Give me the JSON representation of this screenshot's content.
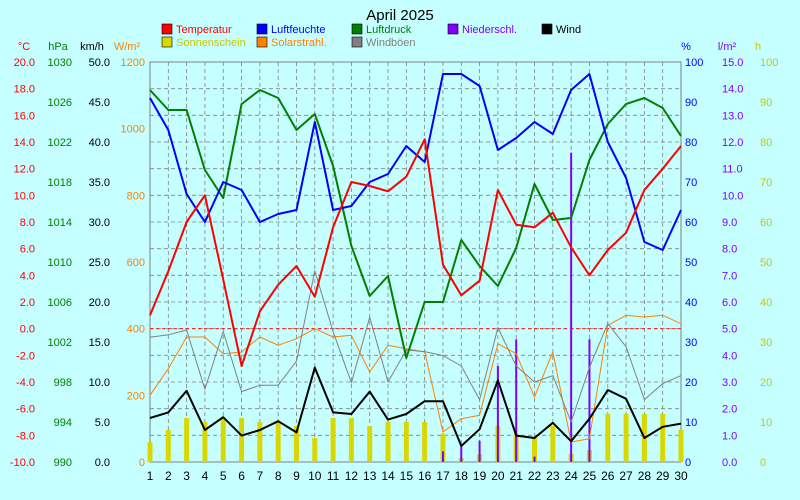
{
  "chart_data": {
    "type": "line",
    "title": "April 2025",
    "x": [
      1,
      2,
      3,
      4,
      5,
      6,
      7,
      8,
      9,
      10,
      11,
      12,
      13,
      14,
      15,
      16,
      17,
      18,
      19,
      20,
      21,
      22,
      23,
      24,
      25,
      26,
      27,
      28,
      29,
      30
    ],
    "axes": {
      "temperature": {
        "unit": "°C",
        "ticks": [
          "20.0",
          "18.0",
          "16.0",
          "14.0",
          "12.0",
          "10.0",
          "8.0",
          "6.0",
          "4.0",
          "2.0",
          "0.0",
          "-2.0",
          "-4.0",
          "-6.0",
          "-8.0",
          "-10.0"
        ],
        "range": [
          -10,
          20
        ],
        "color": "#ff0000"
      },
      "pressure": {
        "unit": "hPa",
        "ticks": [
          "1030",
          "1026",
          "1022",
          "1018",
          "1014",
          "1010",
          "1006",
          "1002",
          "998",
          "994",
          "990"
        ],
        "range": [
          990,
          1030
        ],
        "color": "#008000"
      },
      "wind": {
        "unit": "km/h",
        "ticks": [
          "50.0",
          "45.0",
          "40.0",
          "35.0",
          "30.0",
          "25.0",
          "20.0",
          "15.0",
          "10.0",
          "5.0",
          "0.0"
        ],
        "range": [
          0,
          50
        ],
        "color": "#000000"
      },
      "radiation": {
        "unit": "W/m²",
        "ticks": [
          "1200",
          "1000",
          "800",
          "600",
          "400",
          "200",
          "0"
        ],
        "range": [
          0,
          1200
        ],
        "color": "#ff8000"
      },
      "humidity": {
        "unit": "%",
        "ticks": [
          "100",
          "90",
          "80",
          "70",
          "60",
          "50",
          "40",
          "30",
          "20",
          "10",
          "0"
        ],
        "range": [
          0,
          100
        ],
        "color": "#0000ff"
      },
      "precipitation": {
        "unit": "l/m²",
        "ticks": [
          "15.0",
          "14.0",
          "13.0",
          "12.0",
          "11.0",
          "10.0",
          "9.0",
          "8.0",
          "7.0",
          "6.0",
          "5.0",
          "4.0",
          "3.0",
          "2.0",
          "1.0",
          "0.0"
        ],
        "range": [
          0,
          15
        ],
        "color": "#8000ff"
      },
      "sunshine": {
        "unit": "h",
        "ticks": [
          "100",
          "90",
          "80",
          "70",
          "60",
          "50",
          "40",
          "30",
          "20",
          "10",
          "0"
        ],
        "range": [
          0,
          100
        ],
        "color": "#c8c800"
      }
    },
    "legend": [
      {
        "key": "temperature",
        "label": "Temperatur",
        "color": "#ff0000"
      },
      {
        "key": "humidity",
        "label": "Luftfeuchte",
        "color": "#0000ff"
      },
      {
        "key": "pressure",
        "label": "Luftdruck",
        "color": "#008000"
      },
      {
        "key": "precipitation",
        "label": "Niederschl.",
        "color": "#8000ff"
      },
      {
        "key": "wind",
        "label": "Wind",
        "color": "#000000"
      },
      {
        "key": "sunshine",
        "label": "Sonnenschein",
        "color": "#d8d800"
      },
      {
        "key": "radiation",
        "label": "Solarstrahl.",
        "color": "#ff8000"
      },
      {
        "key": "gusts",
        "label": "Windböen",
        "color": "#808080"
      }
    ],
    "series": {
      "temperature": [
        1.0,
        4.3,
        8.0,
        10.0,
        3.7,
        -2.8,
        1.3,
        3.3,
        4.7,
        2.4,
        7.6,
        11.0,
        10.7,
        10.3,
        11.4,
        14.2,
        4.8,
        2.5,
        3.6,
        10.4,
        7.8,
        7.6,
        8.7,
        6.1,
        4.0,
        5.9,
        7.2,
        10.4,
        12.0,
        13.7
      ],
      "humidity": [
        91,
        83,
        67,
        60,
        70,
        68,
        60,
        62,
        63,
        85,
        63,
        64,
        70,
        72,
        79,
        75,
        97,
        97,
        94,
        78,
        81,
        85,
        82,
        93,
        97,
        80,
        71,
        55,
        53,
        63
      ],
      "pressure": [
        1027.2,
        1025.2,
        1025.2,
        1019.2,
        1016.4,
        1025.8,
        1027.2,
        1026.4,
        1023.2,
        1024.8,
        1019.6,
        1011.6,
        1006.6,
        1008.6,
        1000.4,
        1006.0,
        1006.0,
        1012.2,
        1009.6,
        1007.6,
        1011.4,
        1017.8,
        1014.2,
        1014.4,
        1020.2,
        1023.8,
        1025.8,
        1026.4,
        1025.4,
        1022.6
      ],
      "wind": [
        5.5,
        6.2,
        8.9,
        4.0,
        5.6,
        3.3,
        4.0,
        5.1,
        3.7,
        11.8,
        6.2,
        6.0,
        8.8,
        5.3,
        6.0,
        7.6,
        7.6,
        2.0,
        4.1,
        10.2,
        3.3,
        3.0,
        4.9,
        2.6,
        5.4,
        9.0,
        7.9,
        3.0,
        4.4,
        4.8
      ],
      "gusts": [
        15.6,
        15.9,
        16.5,
        9.1,
        16.3,
        8.8,
        9.6,
        9.6,
        12.6,
        23.9,
        16.3,
        9.9,
        18.1,
        10.0,
        14.0,
        13.8,
        13.3,
        12.0,
        7.8,
        16.8,
        12.0,
        10.0,
        10.8,
        5.0,
        11.8,
        17.3,
        14.4,
        7.8,
        9.8,
        10.8
      ],
      "radiation": [
        200,
        280,
        375,
        375,
        325,
        330,
        375,
        350,
        370,
        400,
        375,
        380,
        270,
        350,
        340,
        330,
        90,
        130,
        140,
        355,
        325,
        195,
        330,
        60,
        70,
        410,
        440,
        435,
        440,
        415
      ],
      "sunshine": [
        5,
        8,
        11,
        10,
        11,
        11,
        10,
        10,
        9,
        6,
        11,
        11,
        9,
        10,
        10,
        10,
        7,
        1,
        2,
        9,
        7,
        6,
        9,
        2,
        3,
        12,
        12,
        12,
        12,
        8
      ],
      "precipitation": [
        0,
        0,
        0,
        0,
        0,
        0,
        0,
        0,
        0,
        0,
        0,
        0,
        0,
        0,
        0,
        0,
        0.4,
        0.6,
        0.8,
        3.6,
        4.6,
        0.2,
        0,
        11.6,
        4.6,
        0,
        0,
        0,
        0,
        0
      ]
    },
    "grid": true
  }
}
